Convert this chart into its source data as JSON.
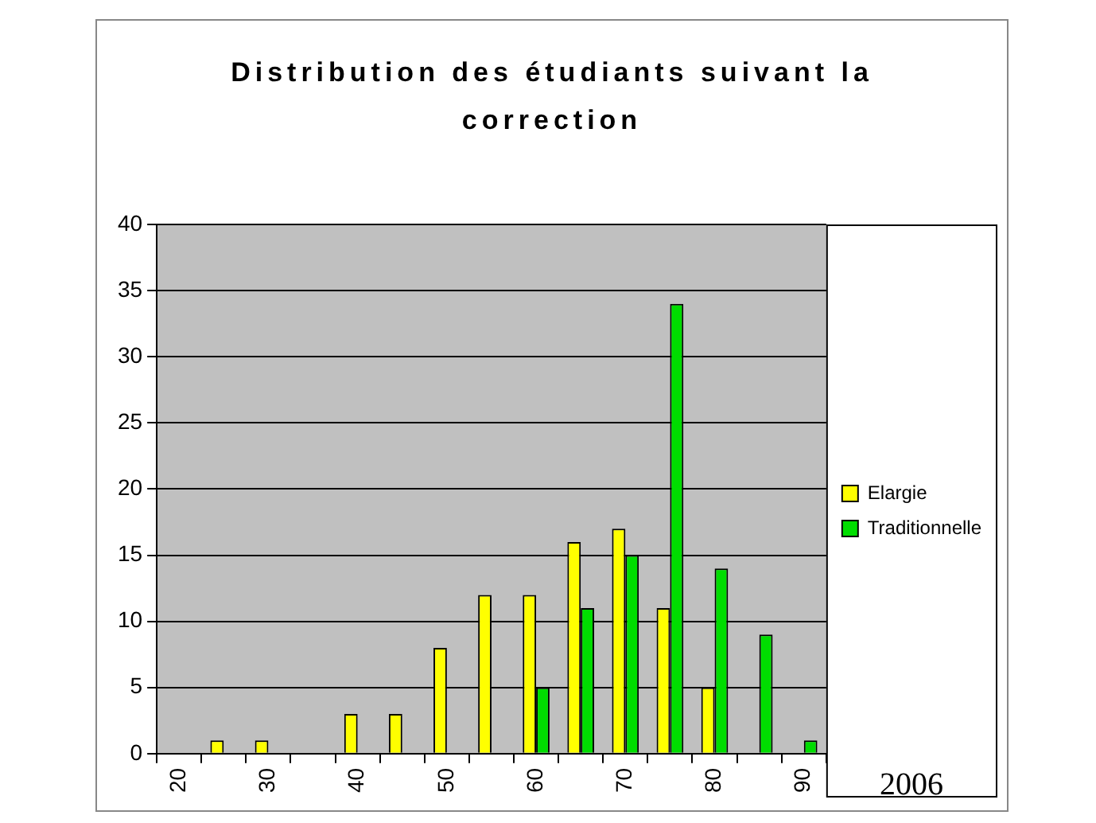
{
  "chart_data": {
    "type": "bar",
    "title": "Distribution des étudiants suivant la correction",
    "categories": [
      "20",
      null,
      "30",
      null,
      "40",
      null,
      "50",
      null,
      "60",
      null,
      "70",
      null,
      "80",
      null,
      "90"
    ],
    "series": [
      {
        "name": "Elargie",
        "color": "#ffff00",
        "values": [
          null,
          1,
          1,
          null,
          3,
          3,
          8,
          12,
          12,
          16,
          17,
          11,
          5,
          null,
          null
        ]
      },
      {
        "name": "Traditionnelle",
        "color": "#00dd00",
        "values": [
          null,
          null,
          null,
          null,
          null,
          null,
          null,
          null,
          5,
          11,
          15,
          34,
          14,
          9,
          1
        ]
      }
    ],
    "ylim": [
      0,
      40
    ],
    "yticks": [
      0,
      5,
      10,
      15,
      20,
      25,
      30,
      35,
      40
    ],
    "grid": "y",
    "legend": "right",
    "annotations": [
      "2006"
    ]
  }
}
